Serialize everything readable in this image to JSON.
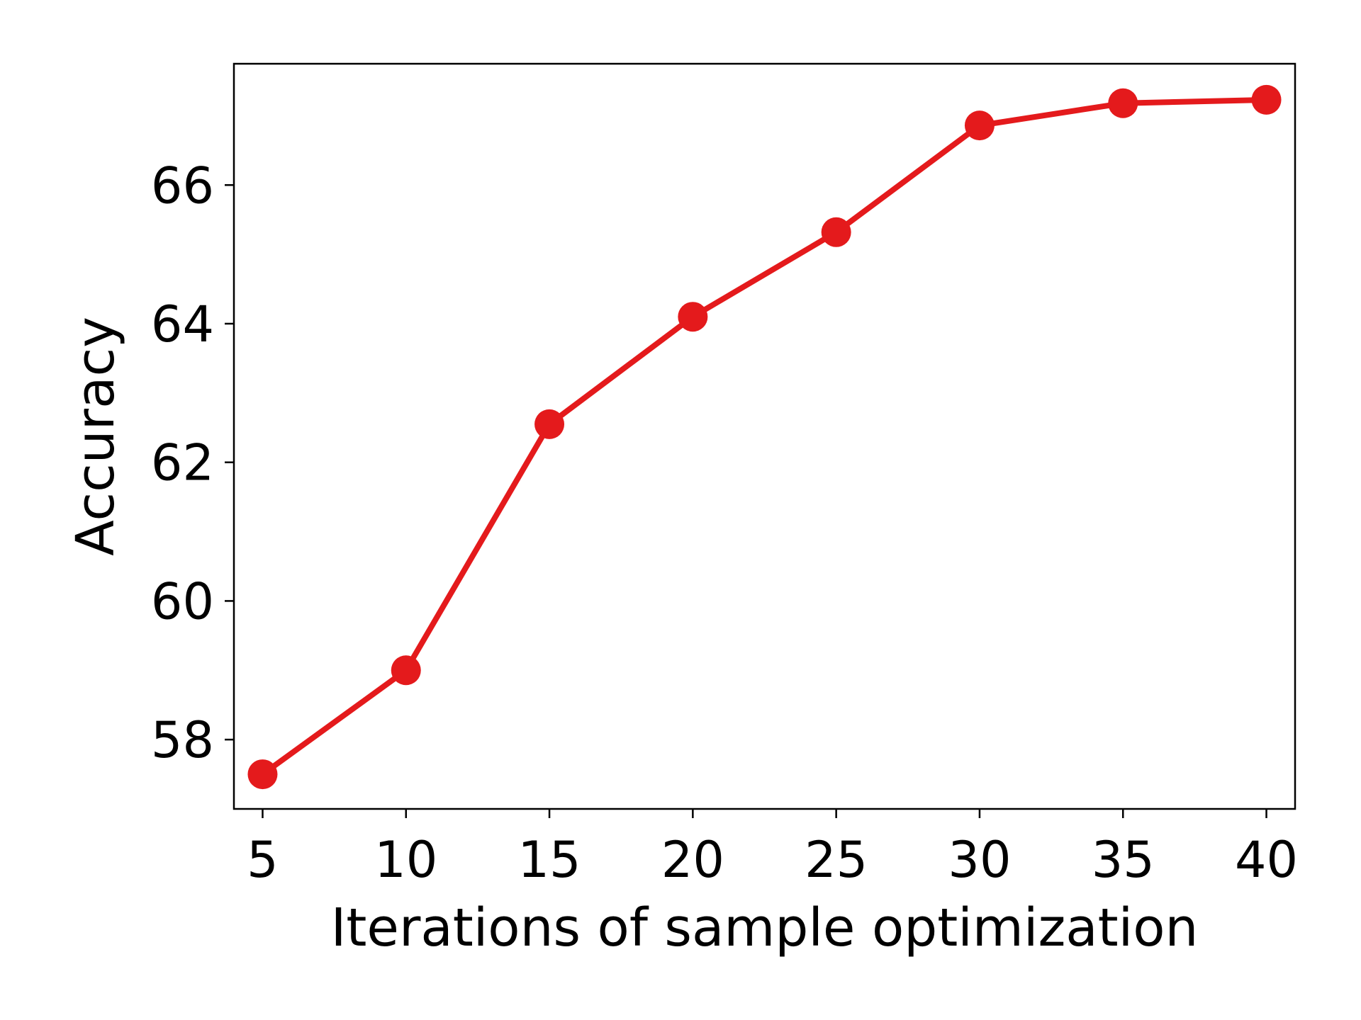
{
  "chart_data": {
    "type": "line",
    "title": "",
    "xlabel": "Iterations of sample optimization",
    "ylabel": "Accuracy",
    "x": [
      5,
      10,
      15,
      20,
      25,
      30,
      35,
      40
    ],
    "series": [
      {
        "values": [
          57.5,
          59.0,
          62.55,
          64.1,
          65.32,
          66.86,
          67.18,
          67.23
        ],
        "color": "#e41a1c",
        "marker": "circle"
      }
    ],
    "xlim": [
      4.0,
      41.0
    ],
    "ylim": [
      57.0,
      67.75
    ],
    "xticks": [
      5,
      10,
      15,
      20,
      25,
      30,
      35,
      40
    ],
    "yticks": [
      58,
      60,
      62,
      64,
      66
    ],
    "grid": false,
    "legend": "none"
  }
}
